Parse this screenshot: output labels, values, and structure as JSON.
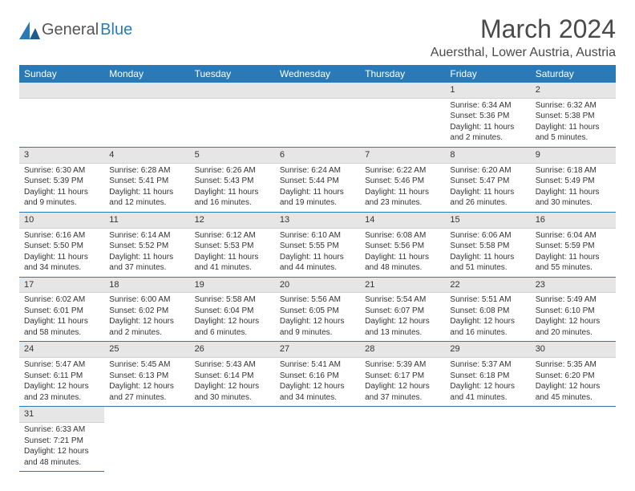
{
  "logo": {
    "text1": "General",
    "text2": "Blue"
  },
  "title": "March 2024",
  "location": "Auersthal, Lower Austria, Austria",
  "colors": {
    "header_bg": "#2a7ab8",
    "header_text": "#ffffff",
    "daynum_bg": "#e6e6e6",
    "border": "#2a7ab8"
  },
  "weekdays": [
    "Sunday",
    "Monday",
    "Tuesday",
    "Wednesday",
    "Thursday",
    "Friday",
    "Saturday"
  ],
  "weeks": [
    [
      null,
      null,
      null,
      null,
      null,
      {
        "day": "1",
        "sunrise": "Sunrise: 6:34 AM",
        "sunset": "Sunset: 5:36 PM",
        "daylight1": "Daylight: 11 hours",
        "daylight2": "and 2 minutes."
      },
      {
        "day": "2",
        "sunrise": "Sunrise: 6:32 AM",
        "sunset": "Sunset: 5:38 PM",
        "daylight1": "Daylight: 11 hours",
        "daylight2": "and 5 minutes."
      }
    ],
    [
      {
        "day": "3",
        "sunrise": "Sunrise: 6:30 AM",
        "sunset": "Sunset: 5:39 PM",
        "daylight1": "Daylight: 11 hours",
        "daylight2": "and 9 minutes."
      },
      {
        "day": "4",
        "sunrise": "Sunrise: 6:28 AM",
        "sunset": "Sunset: 5:41 PM",
        "daylight1": "Daylight: 11 hours",
        "daylight2": "and 12 minutes."
      },
      {
        "day": "5",
        "sunrise": "Sunrise: 6:26 AM",
        "sunset": "Sunset: 5:43 PM",
        "daylight1": "Daylight: 11 hours",
        "daylight2": "and 16 minutes."
      },
      {
        "day": "6",
        "sunrise": "Sunrise: 6:24 AM",
        "sunset": "Sunset: 5:44 PM",
        "daylight1": "Daylight: 11 hours",
        "daylight2": "and 19 minutes."
      },
      {
        "day": "7",
        "sunrise": "Sunrise: 6:22 AM",
        "sunset": "Sunset: 5:46 PM",
        "daylight1": "Daylight: 11 hours",
        "daylight2": "and 23 minutes."
      },
      {
        "day": "8",
        "sunrise": "Sunrise: 6:20 AM",
        "sunset": "Sunset: 5:47 PM",
        "daylight1": "Daylight: 11 hours",
        "daylight2": "and 26 minutes."
      },
      {
        "day": "9",
        "sunrise": "Sunrise: 6:18 AM",
        "sunset": "Sunset: 5:49 PM",
        "daylight1": "Daylight: 11 hours",
        "daylight2": "and 30 minutes."
      }
    ],
    [
      {
        "day": "10",
        "sunrise": "Sunrise: 6:16 AM",
        "sunset": "Sunset: 5:50 PM",
        "daylight1": "Daylight: 11 hours",
        "daylight2": "and 34 minutes."
      },
      {
        "day": "11",
        "sunrise": "Sunrise: 6:14 AM",
        "sunset": "Sunset: 5:52 PM",
        "daylight1": "Daylight: 11 hours",
        "daylight2": "and 37 minutes."
      },
      {
        "day": "12",
        "sunrise": "Sunrise: 6:12 AM",
        "sunset": "Sunset: 5:53 PM",
        "daylight1": "Daylight: 11 hours",
        "daylight2": "and 41 minutes."
      },
      {
        "day": "13",
        "sunrise": "Sunrise: 6:10 AM",
        "sunset": "Sunset: 5:55 PM",
        "daylight1": "Daylight: 11 hours",
        "daylight2": "and 44 minutes."
      },
      {
        "day": "14",
        "sunrise": "Sunrise: 6:08 AM",
        "sunset": "Sunset: 5:56 PM",
        "daylight1": "Daylight: 11 hours",
        "daylight2": "and 48 minutes."
      },
      {
        "day": "15",
        "sunrise": "Sunrise: 6:06 AM",
        "sunset": "Sunset: 5:58 PM",
        "daylight1": "Daylight: 11 hours",
        "daylight2": "and 51 minutes."
      },
      {
        "day": "16",
        "sunrise": "Sunrise: 6:04 AM",
        "sunset": "Sunset: 5:59 PM",
        "daylight1": "Daylight: 11 hours",
        "daylight2": "and 55 minutes."
      }
    ],
    [
      {
        "day": "17",
        "sunrise": "Sunrise: 6:02 AM",
        "sunset": "Sunset: 6:01 PM",
        "daylight1": "Daylight: 11 hours",
        "daylight2": "and 58 minutes."
      },
      {
        "day": "18",
        "sunrise": "Sunrise: 6:00 AM",
        "sunset": "Sunset: 6:02 PM",
        "daylight1": "Daylight: 12 hours",
        "daylight2": "and 2 minutes."
      },
      {
        "day": "19",
        "sunrise": "Sunrise: 5:58 AM",
        "sunset": "Sunset: 6:04 PM",
        "daylight1": "Daylight: 12 hours",
        "daylight2": "and 6 minutes."
      },
      {
        "day": "20",
        "sunrise": "Sunrise: 5:56 AM",
        "sunset": "Sunset: 6:05 PM",
        "daylight1": "Daylight: 12 hours",
        "daylight2": "and 9 minutes."
      },
      {
        "day": "21",
        "sunrise": "Sunrise: 5:54 AM",
        "sunset": "Sunset: 6:07 PM",
        "daylight1": "Daylight: 12 hours",
        "daylight2": "and 13 minutes."
      },
      {
        "day": "22",
        "sunrise": "Sunrise: 5:51 AM",
        "sunset": "Sunset: 6:08 PM",
        "daylight1": "Daylight: 12 hours",
        "daylight2": "and 16 minutes."
      },
      {
        "day": "23",
        "sunrise": "Sunrise: 5:49 AM",
        "sunset": "Sunset: 6:10 PM",
        "daylight1": "Daylight: 12 hours",
        "daylight2": "and 20 minutes."
      }
    ],
    [
      {
        "day": "24",
        "sunrise": "Sunrise: 5:47 AM",
        "sunset": "Sunset: 6:11 PM",
        "daylight1": "Daylight: 12 hours",
        "daylight2": "and 23 minutes."
      },
      {
        "day": "25",
        "sunrise": "Sunrise: 5:45 AM",
        "sunset": "Sunset: 6:13 PM",
        "daylight1": "Daylight: 12 hours",
        "daylight2": "and 27 minutes."
      },
      {
        "day": "26",
        "sunrise": "Sunrise: 5:43 AM",
        "sunset": "Sunset: 6:14 PM",
        "daylight1": "Daylight: 12 hours",
        "daylight2": "and 30 minutes."
      },
      {
        "day": "27",
        "sunrise": "Sunrise: 5:41 AM",
        "sunset": "Sunset: 6:16 PM",
        "daylight1": "Daylight: 12 hours",
        "daylight2": "and 34 minutes."
      },
      {
        "day": "28",
        "sunrise": "Sunrise: 5:39 AM",
        "sunset": "Sunset: 6:17 PM",
        "daylight1": "Daylight: 12 hours",
        "daylight2": "and 37 minutes."
      },
      {
        "day": "29",
        "sunrise": "Sunrise: 5:37 AM",
        "sunset": "Sunset: 6:18 PM",
        "daylight1": "Daylight: 12 hours",
        "daylight2": "and 41 minutes."
      },
      {
        "day": "30",
        "sunrise": "Sunrise: 5:35 AM",
        "sunset": "Sunset: 6:20 PM",
        "daylight1": "Daylight: 12 hours",
        "daylight2": "and 45 minutes."
      }
    ],
    [
      {
        "day": "31",
        "sunrise": "Sunrise: 6:33 AM",
        "sunset": "Sunset: 7:21 PM",
        "daylight1": "Daylight: 12 hours",
        "daylight2": "and 48 minutes."
      },
      null,
      null,
      null,
      null,
      null,
      null
    ]
  ]
}
